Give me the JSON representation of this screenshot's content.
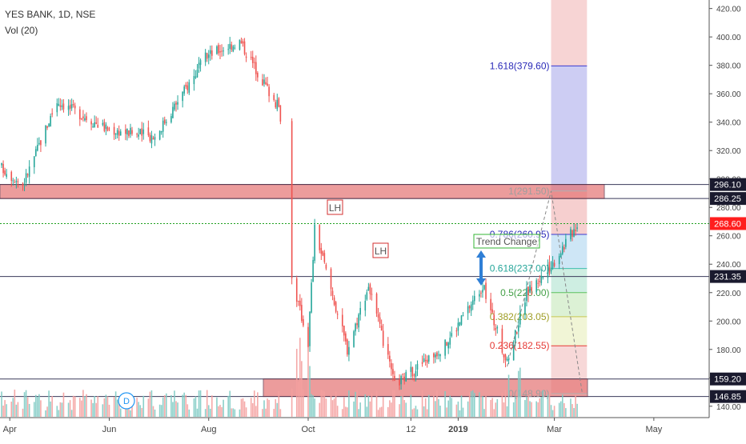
{
  "chart_data": {
    "type": "candlestick",
    "title": "YES BANK, 1D, NSE",
    "indicator": "Vol (20)",
    "colors": {
      "up": "#26a69a",
      "down": "#ef5350",
      "vol_up": "#80cbc4",
      "vol_down": "#f4a09e",
      "zone": "#e57373",
      "fib_blue": "#2a2ab8",
      "fib_red": "#e53935",
      "fib_teal": "#26a69a",
      "fib_green": "#43a047",
      "fib_olive": "#9e9d24",
      "fib_gray": "#9e9e9e",
      "price_tag": "#ff1e1e",
      "current_line": "#1ea01e"
    },
    "x_labels": [
      "Apr",
      "Jun",
      "Aug",
      "Oct",
      "12",
      "2019",
      "Mar",
      "May"
    ],
    "x_label_bold": [
      false,
      false,
      false,
      false,
      false,
      true,
      false,
      false
    ],
    "y_ticks": [
      140,
      160,
      180,
      200,
      220,
      240,
      260,
      280,
      300,
      320,
      340,
      360,
      380,
      400,
      420
    ],
    "y_tick_labels": [
      "140.00",
      "160.00",
      "180.00",
      "200.00",
      "220.00",
      "240.00",
      "260.00",
      "280.00",
      "300.00",
      "320.00",
      "340.00",
      "360.00",
      "380.00",
      "400.00",
      "420.00"
    ],
    "ylim": [
      132,
      426
    ],
    "price_tags": [
      {
        "label": "296.10",
        "value": 296.1,
        "style": "dark"
      },
      {
        "label": "286.25",
        "value": 286.25,
        "style": "dark"
      },
      {
        "label": "268.60",
        "value": 268.6,
        "style": "current"
      },
      {
        "label": "231.35",
        "value": 231.35,
        "style": "dark"
      },
      {
        "label": "159.20",
        "value": 159.2,
        "style": "dark"
      },
      {
        "label": "146.85",
        "value": 146.85,
        "style": "dark"
      }
    ],
    "horizontal_lines": [
      296.1,
      286.25,
      231.35,
      159.2,
      146.85
    ],
    "current_price": 268.6,
    "zones": [
      {
        "label": "top-zone",
        "low": 286.25,
        "high": 296.1
      },
      {
        "label": "bottom-zone",
        "low": 146.85,
        "high": 159.2
      }
    ],
    "fib_levels": [
      {
        "label": "1.618(379.60)",
        "value": 379.6,
        "color": "fib_blue"
      },
      {
        "label": "1(291.50)",
        "value": 291.5,
        "color": "fib_gray"
      },
      {
        "label": "0.786(260.95)",
        "value": 260.95,
        "color": "fib_blue"
      },
      {
        "label": "0.618(237.00)",
        "value": 237.0,
        "color": "fib_teal"
      },
      {
        "label": "0.5(220.00)",
        "value": 220.0,
        "color": "fib_green"
      },
      {
        "label": "0.382(203.05)",
        "value": 203.05,
        "color": "fib_olive"
      },
      {
        "label": "0.236(182.55)",
        "value": 182.55,
        "color": "fib_red"
      },
      {
        "label": "0(148.90)",
        "value": 148.9,
        "color": "fib_gray"
      }
    ],
    "annotations": [
      {
        "text": "LH",
        "type": "box"
      },
      {
        "text": "LH",
        "type": "box"
      },
      {
        "text": "Trend Change",
        "type": "box"
      },
      {
        "text": "D",
        "type": "circle"
      }
    ],
    "key_points": [
      {
        "date": "2018-03-27",
        "close": 308
      },
      {
        "date": "2018-04-09",
        "close": 296
      },
      {
        "date": "2018-04-30",
        "close": 355
      },
      {
        "date": "2018-05-31",
        "close": 335
      },
      {
        "date": "2018-06-29",
        "close": 330
      },
      {
        "date": "2018-07-31",
        "close": 387
      },
      {
        "date": "2018-08-20",
        "close": 397
      },
      {
        "date": "2018-09-13",
        "close": 350
      },
      {
        "date": "2018-09-19",
        "close": 315
      },
      {
        "date": "2018-09-21",
        "close": 230
      },
      {
        "date": "2018-10-01",
        "close": 185
      },
      {
        "date": "2018-10-05",
        "close": 265
      },
      {
        "date": "2018-10-25",
        "close": 180
      },
      {
        "date": "2018-11-07",
        "close": 225
      },
      {
        "date": "2018-11-23",
        "close": 155
      },
      {
        "date": "2018-12-24",
        "close": 183
      },
      {
        "date": "2019-01-16",
        "close": 225
      },
      {
        "date": "2019-01-31",
        "close": 170
      },
      {
        "date": "2019-02-12",
        "close": 220
      },
      {
        "date": "2019-02-26",
        "close": 237
      },
      {
        "date": "2019-03-15",
        "close": 268.6
      }
    ],
    "grid": false
  }
}
